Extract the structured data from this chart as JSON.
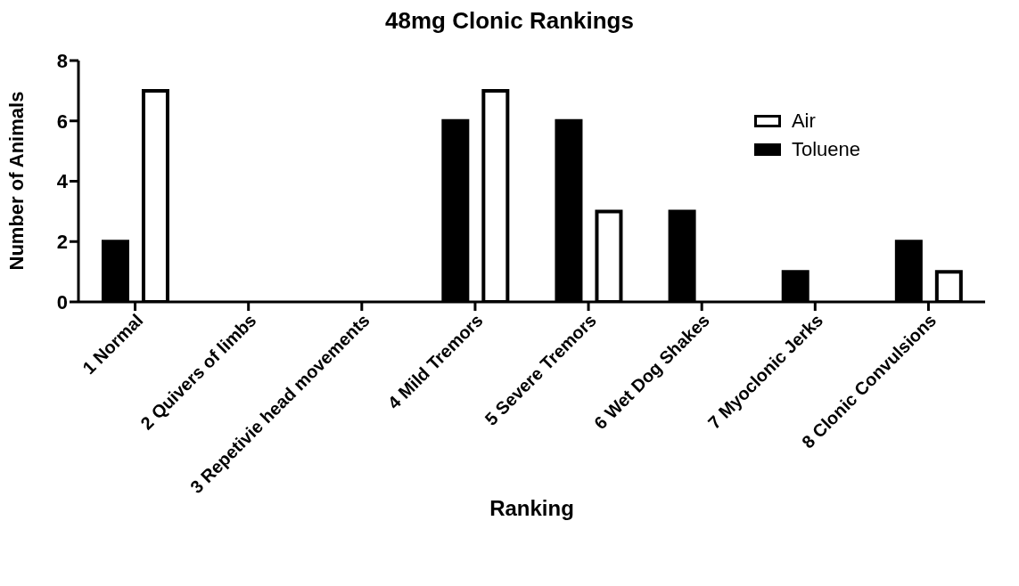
{
  "chart_data": {
    "type": "bar",
    "title": "48mg Clonic Rankings",
    "xlabel": "Ranking",
    "ylabel": "Number of Animals",
    "categories": [
      "1 Normal",
      "2 Quivers of limbs",
      "3 Repetivie head movements",
      "4 Mild Tremors",
      "5 Severe Tremors",
      "6 Wet Dog Shakes",
      "7 Myoclonic Jerks",
      "8 Clonic Convulsions"
    ],
    "series": [
      {
        "name": "Air",
        "color": "#ffffff",
        "values": [
          7,
          0,
          0,
          7,
          3,
          0,
          0,
          1
        ]
      },
      {
        "name": "Toluene",
        "color": "#000000",
        "values": [
          2,
          0,
          0,
          6,
          6,
          3,
          1,
          2
        ]
      }
    ],
    "ylim": [
      0,
      8
    ],
    "yticks": [
      0,
      2,
      4,
      6,
      8
    ],
    "grid": false,
    "legend": "top right"
  }
}
